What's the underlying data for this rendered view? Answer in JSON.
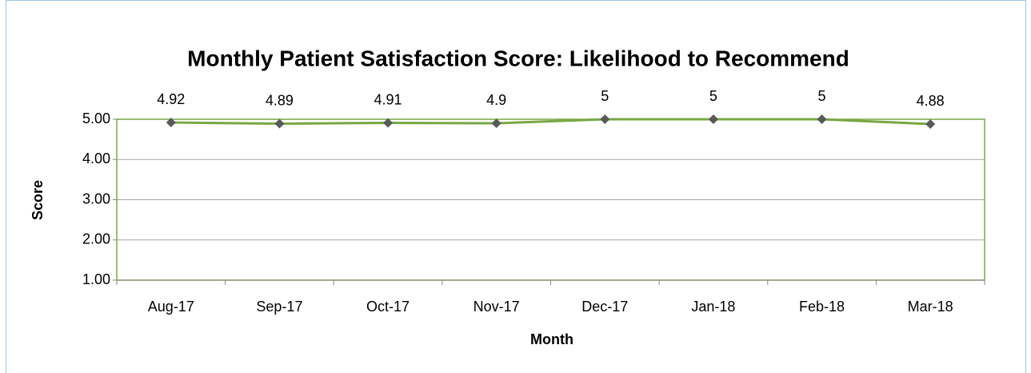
{
  "chart_data": {
    "type": "line",
    "title": "Monthly Patient Satisfaction Score: Likelihood to Recommend",
    "x_label": "Month",
    "y_label": "Score",
    "categories": [
      "Aug-17",
      "Sep-17",
      "Oct-17",
      "Nov-17",
      "Dec-17",
      "Jan-18",
      "Feb-18",
      "Mar-18"
    ],
    "series": [
      {
        "name": "Score",
        "color": "#77a844",
        "marker_color": "#595959",
        "values": [
          4.92,
          4.89,
          4.91,
          4.9,
          5,
          5,
          5,
          4.88
        ]
      }
    ],
    "ylim": [
      1,
      5
    ],
    "yticks": [
      {
        "value": 1,
        "label": "1.00"
      },
      {
        "value": 2,
        "label": "2.00"
      },
      {
        "value": 3,
        "label": "3.00"
      },
      {
        "value": 4,
        "label": "4.00"
      },
      {
        "value": 5,
        "label": "5.00"
      }
    ],
    "grid": true
  }
}
